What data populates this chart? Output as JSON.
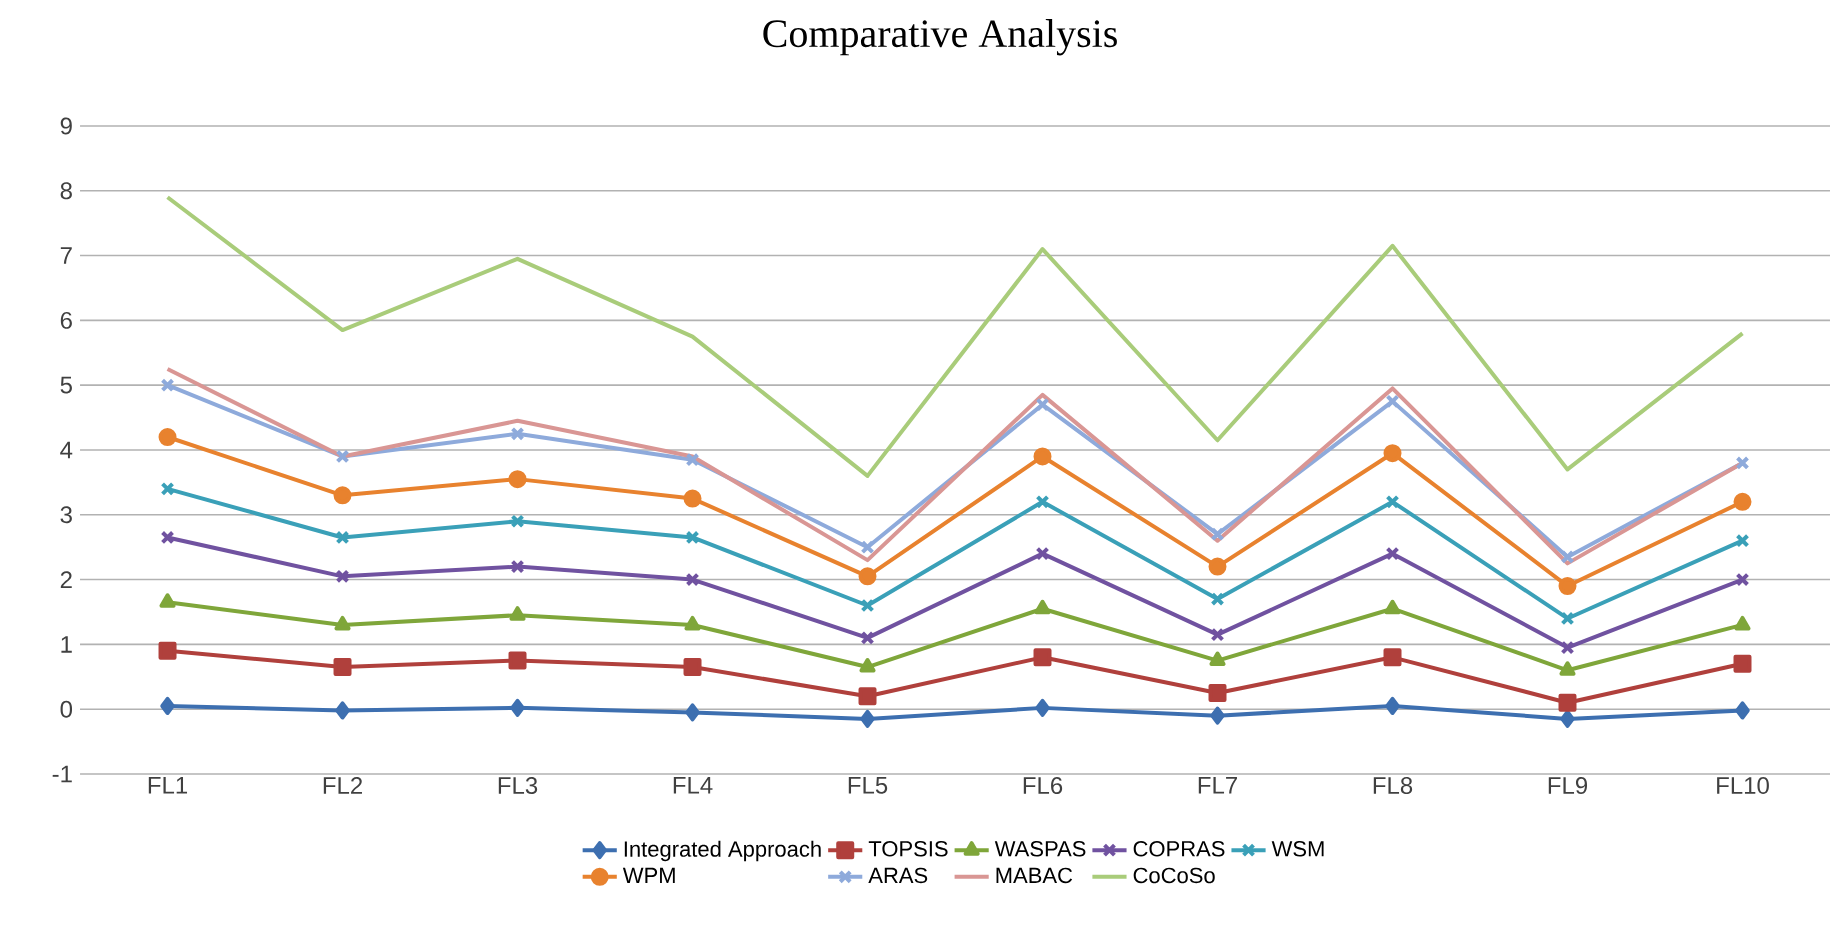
{
  "chart_data": {
    "type": "line",
    "title": "Comparative Analysis",
    "categories": [
      "FL1",
      "FL2",
      "FL3",
      "FL4",
      "FL5",
      "FL6",
      "FL7",
      "FL8",
      "FL9",
      "FL10"
    ],
    "series": [
      {
        "name": "Integrated Approach",
        "color": "#3d6fb0",
        "marker": "diamond",
        "values": [
          0.05,
          -0.02,
          0.02,
          -0.05,
          -0.15,
          0.02,
          -0.1,
          0.05,
          -0.15,
          -0.02
        ]
      },
      {
        "name": "TOPSIS",
        "color": "#b0403c",
        "marker": "square",
        "values": [
          0.9,
          0.65,
          0.75,
          0.65,
          0.2,
          0.8,
          0.25,
          0.8,
          0.1,
          0.7
        ]
      },
      {
        "name": "WASPAS",
        "color": "#7fa63a",
        "marker": "triangle",
        "values": [
          1.65,
          1.3,
          1.45,
          1.3,
          0.65,
          1.55,
          0.75,
          1.55,
          0.6,
          1.3
        ]
      },
      {
        "name": "COPRAS",
        "color": "#7052a0",
        "marker": "cross",
        "values": [
          2.65,
          2.05,
          2.2,
          2.0,
          1.1,
          2.4,
          1.15,
          2.4,
          0.95,
          2.0
        ]
      },
      {
        "name": "WSM",
        "color": "#3aa0b8",
        "marker": "cross",
        "values": [
          3.4,
          2.65,
          2.9,
          2.65,
          1.6,
          3.2,
          1.7,
          3.2,
          1.4,
          2.6
        ]
      },
      {
        "name": "WPM",
        "color": "#e8822e",
        "marker": "circle",
        "values": [
          4.2,
          3.3,
          3.55,
          3.25,
          2.05,
          3.9,
          2.2,
          3.95,
          1.9,
          3.2
        ]
      },
      {
        "name": "ARAS",
        "color": "#8eaadb",
        "marker": "cross",
        "values": [
          5.0,
          3.9,
          4.25,
          3.85,
          2.5,
          4.7,
          2.7,
          4.75,
          2.35,
          3.8
        ]
      },
      {
        "name": "MABAC",
        "color": "#d99694",
        "marker": "none",
        "values": [
          5.25,
          3.9,
          4.45,
          3.9,
          2.3,
          4.85,
          2.6,
          4.95,
          2.25,
          3.8
        ]
      },
      {
        "name": "CoCoSo",
        "color": "#a9cc7a",
        "marker": "none",
        "values": [
          7.9,
          5.85,
          6.95,
          5.75,
          3.6,
          7.1,
          4.15,
          7.15,
          3.7,
          5.8
        ]
      }
    ],
    "ylim": [
      -1,
      9
    ],
    "yticks": [
      -1,
      0,
      1,
      2,
      3,
      4,
      5,
      6,
      7,
      8,
      9
    ],
    "grid": "y",
    "legend": "bottom",
    "line_style": "solid"
  }
}
